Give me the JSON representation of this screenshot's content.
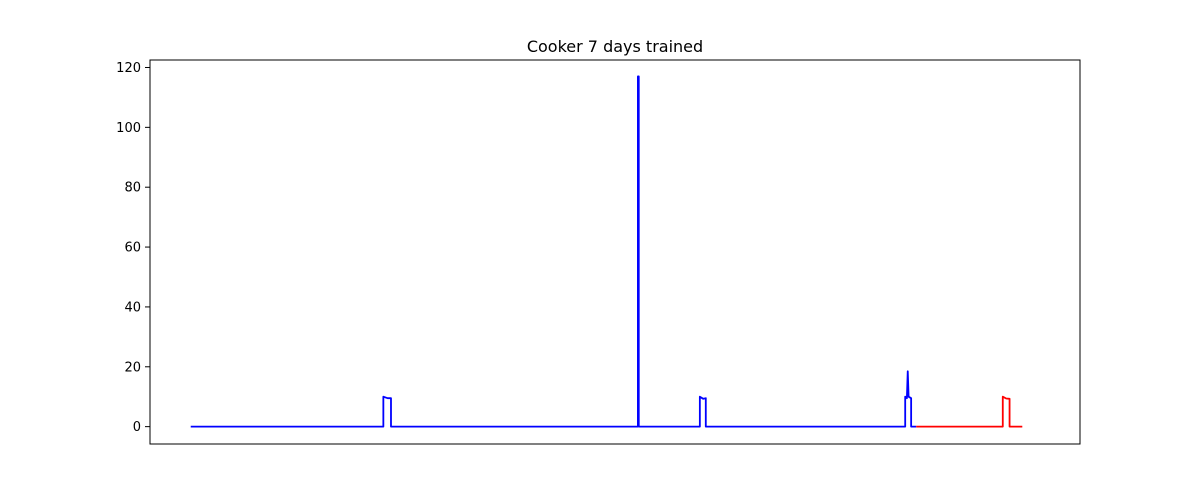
{
  "chart_data": {
    "type": "line",
    "title": "Cooker 7 days trained",
    "xlabel": "",
    "ylabel": "",
    "x_axis_ticks_visible": false,
    "ylim": [
      -5.8,
      122.5
    ],
    "xlim": [
      -0.048,
      1.048
    ],
    "y_ticks": [
      0,
      20,
      40,
      60,
      80,
      100,
      120
    ],
    "grid": false,
    "series": [
      {
        "color": "#0000ff",
        "points": [
          [
            0.0,
            0.0
          ],
          [
            0.227,
            0.0
          ],
          [
            0.227,
            10.0
          ],
          [
            0.232,
            9.5
          ],
          [
            0.236,
            9.5
          ],
          [
            0.236,
            0.0
          ],
          [
            0.527,
            0.0
          ],
          [
            0.527,
            117.0
          ],
          [
            0.528,
            117.0
          ],
          [
            0.528,
            0.0
          ],
          [
            0.6,
            0.0
          ],
          [
            0.6,
            10.0
          ],
          [
            0.604,
            9.3
          ],
          [
            0.607,
            9.5
          ],
          [
            0.607,
            0.0
          ],
          [
            0.842,
            0.0
          ],
          [
            0.842,
            10.0
          ],
          [
            0.844,
            9.5
          ],
          [
            0.845,
            18.5
          ],
          [
            0.846,
            10.0
          ],
          [
            0.849,
            9.5
          ],
          [
            0.849,
            0.0
          ],
          [
            0.855,
            0.0
          ]
        ]
      },
      {
        "color": "#ff0000",
        "points": [
          [
            0.855,
            0.0
          ],
          [
            0.957,
            0.0
          ],
          [
            0.957,
            10.0
          ],
          [
            0.961,
            9.4
          ],
          [
            0.965,
            9.3
          ],
          [
            0.965,
            0.0
          ],
          [
            0.98,
            0.0
          ]
        ]
      }
    ]
  }
}
